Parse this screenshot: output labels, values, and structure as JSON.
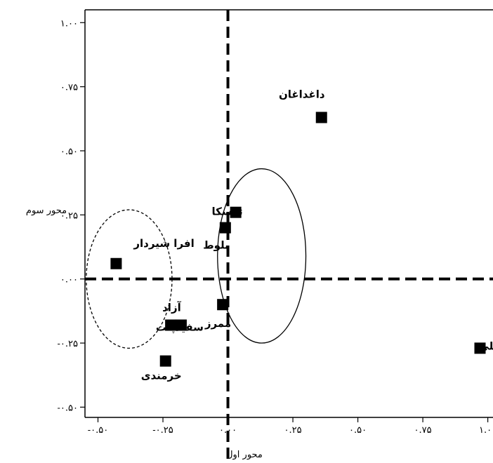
{
  "chart_data": {
    "type": "scatter",
    "xlabel": "محور اول",
    "ylabel": "محور سوم",
    "xlim": [
      -0.55,
      1.02
    ],
    "ylim": [
      -0.54,
      1.05
    ],
    "x_ticks": [
      {
        "value": -0.5,
        "label": "-۰.۵۰"
      },
      {
        "value": -0.25,
        "label": "-۰.۲۵"
      },
      {
        "value": 0.0,
        "label": "۰.۰۰"
      },
      {
        "value": 0.25,
        "label": "۰.۲۵"
      },
      {
        "value": 0.5,
        "label": "۰.۵۰"
      },
      {
        "value": 0.75,
        "label": "۰.۷۵"
      },
      {
        "value": 1.0,
        "label": "۱.۰۰"
      }
    ],
    "y_ticks": [
      {
        "value": 1.0,
        "label": "۱.۰۰"
      },
      {
        "value": 0.75,
        "label": "۰.۷۵"
      },
      {
        "value": 0.5,
        "label": "۰.۵۰"
      },
      {
        "value": 0.25,
        "label": "۰.۲۵"
      },
      {
        "value": 0.0,
        "label": "۰.۰۰"
      },
      {
        "value": -0.25,
        "label": "-۰.۲۵"
      },
      {
        "value": -0.5,
        "label": "-۰.۵۰"
      }
    ],
    "reference_lines": {
      "x": 0,
      "y": 0
    },
    "grid": false,
    "points": [
      {
        "label": "داغداغان",
        "x": 0.36,
        "y": 0.63
      },
      {
        "label": "توسکا",
        "x": 0.03,
        "y": 0.26
      },
      {
        "label": "بلوط",
        "x": -0.01,
        "y": 0.2
      },
      {
        "label": "افرا شیردار",
        "x": -0.43,
        "y": 0.06
      },
      {
        "label": "ممرز",
        "x": -0.02,
        "y": -0.1
      },
      {
        "label": "آزاد",
        "x": -0.22,
        "y": -0.18
      },
      {
        "label": "سفیدپلت",
        "x": -0.18,
        "y": -0.18
      },
      {
        "label": "خرمندی",
        "x": -0.24,
        "y": -0.32
      },
      {
        "label": "انجیلی",
        "x": 0.97,
        "y": -0.27
      }
    ],
    "groups": [
      {
        "style": "solid-ellipse",
        "cx": 0.13,
        "cy": 0.09,
        "rx": 0.17,
        "ry": 0.34
      },
      {
        "style": "dashed-ellipse",
        "cx": -0.38,
        "cy": 0.0,
        "rx": 0.165,
        "ry": 0.27
      }
    ]
  }
}
